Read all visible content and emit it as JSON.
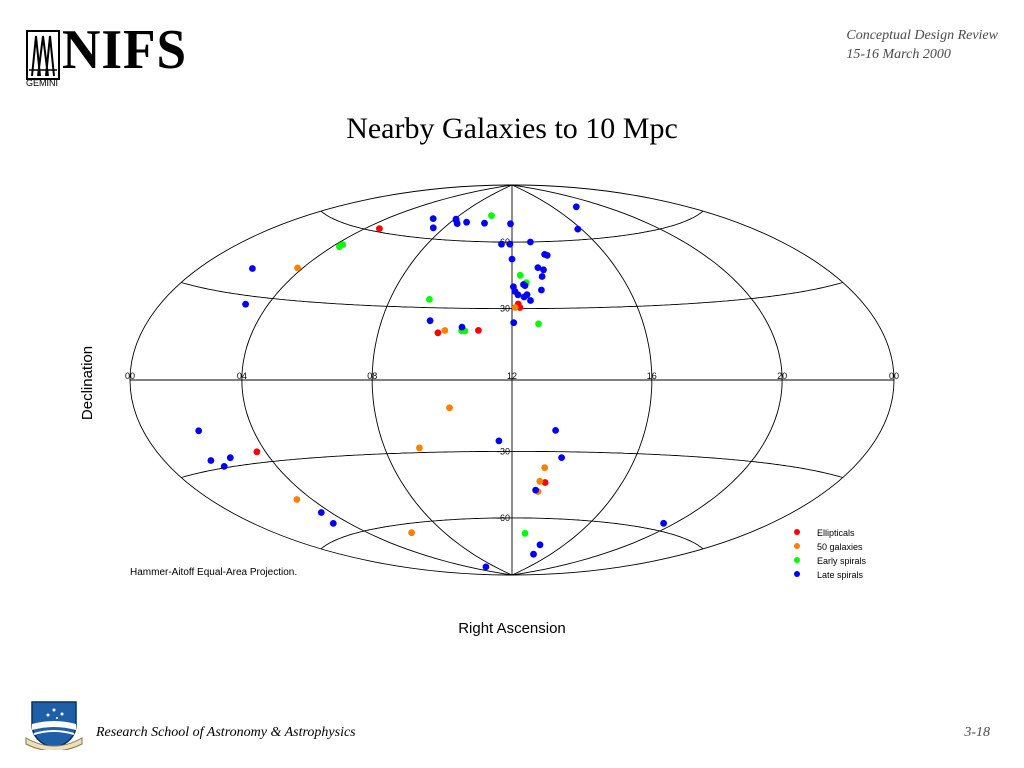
{
  "header": {
    "logo_text": "NIFS",
    "logo_subtext": "GEMINI",
    "review_line1": "Conceptual Design Review",
    "review_line2": "15-16 March 2000"
  },
  "title": "Nearby Galaxies to 10 Mpc",
  "footer": {
    "institution": "Research School of Astronomy & Astrophysics",
    "page_number": "3-18"
  },
  "chart_data": {
    "type": "scatter",
    "projection_label": "Hammer-Aitoff Equal-Area Projection.",
    "xlabel": "Right Ascension",
    "ylabel": "Declination",
    "ra_tick_labels": [
      "00",
      "04",
      "08",
      "12",
      "16",
      "20",
      "00"
    ],
    "dec_tick_labels": [
      "60",
      "30",
      "-30",
      "-60"
    ],
    "legend_position": "bottom-right",
    "series": [
      {
        "name": "Ellipticals",
        "color": "#ff0000",
        "points": [
          [
            4.7,
            61.3
          ],
          [
            3.7,
            -26
          ],
          [
            12.2,
            32
          ],
          [
            12.25,
            30.5
          ],
          [
            11.0,
            20.7
          ],
          [
            9.8,
            19.5
          ],
          [
            13.2,
            -43.5
          ]
        ]
      },
      {
        "name": "50 galaxies",
        "color": "#ff8000",
        "points": [
          [
            3.8,
            42
          ],
          [
            3.4,
            -44.5
          ],
          [
            6.2,
            -64
          ],
          [
            12.1,
            30.5
          ],
          [
            9.1,
            -28
          ],
          [
            10.2,
            -11.5
          ],
          [
            10.0,
            20.5
          ],
          [
            13.1,
            -37
          ],
          [
            13.0,
            -43
          ],
          [
            13.0,
            -47.6
          ]
        ]
      },
      {
        "name": "Early spirals",
        "color": "#00ff00",
        "points": [
          [
            4.3,
            53
          ],
          [
            4.3,
            52
          ],
          [
            10.4,
            73
          ],
          [
            12.3,
            44.6
          ],
          [
            12.5,
            41.3
          ],
          [
            9.3,
            33.5
          ],
          [
            10.5,
            20.5
          ],
          [
            10.6,
            20.4
          ],
          [
            12.8,
            23.5
          ],
          [
            12.8,
            -67.5
          ]
        ]
      },
      {
        "name": "Late spirals",
        "color": "#0000ff",
        "points": [
          [
            2.1,
            39
          ],
          [
            2.1,
            -17
          ],
          [
            1.8,
            -27
          ],
          [
            2.1,
            -29.5
          ],
          [
            2.6,
            -27
          ],
          [
            3.3,
            -55
          ],
          [
            3.6,
            -50.5
          ],
          [
            3.2,
            27
          ],
          [
            6.6,
            69
          ],
          [
            7.4,
            65
          ],
          [
            8.1,
            70
          ],
          [
            8.2,
            69.5
          ],
          [
            8.5,
            68
          ],
          [
            9.0,
            69
          ],
          [
            10.2,
            69
          ],
          [
            11.9,
            69
          ],
          [
            11.9,
            59
          ],
          [
            12.0,
            52
          ],
          [
            12.05,
            39.5
          ],
          [
            12.1,
            37.5
          ],
          [
            12.2,
            36
          ],
          [
            12.4,
            40.5
          ],
          [
            12.45,
            40
          ],
          [
            12.4,
            35
          ],
          [
            12.5,
            36
          ],
          [
            12.6,
            33.5
          ],
          [
            12.9,
            60
          ],
          [
            13.0,
            48
          ],
          [
            13.2,
            47
          ],
          [
            13.4,
            54
          ],
          [
            13.5,
            53.5
          ],
          [
            13.1,
            44
          ],
          [
            13.0,
            38
          ],
          [
            11.5,
            59
          ],
          [
            12.05,
            24
          ],
          [
            10.5,
            22
          ],
          [
            9.5,
            24.5
          ],
          [
            11.6,
            -25.5
          ],
          [
            12.9,
            -47
          ],
          [
            13.3,
            -21
          ],
          [
            13.6,
            -32.5
          ],
          [
            15.8,
            65
          ],
          [
            14.2,
            -73
          ],
          [
            14.3,
            -78
          ],
          [
            19.5,
            -57
          ],
          [
            18.0,
            75
          ],
          [
            6.3,
            -84
          ]
        ]
      }
    ]
  }
}
